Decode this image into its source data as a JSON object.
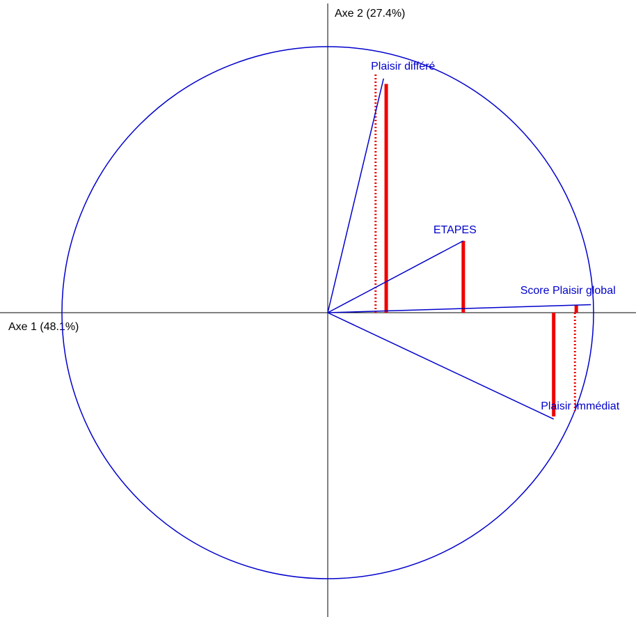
{
  "chart_data": {
    "type": "vector",
    "xlabel": "Axe 1 (48.1%)",
    "ylabel": "Axe 2 (27.4%)",
    "xlim": [
      -1,
      1
    ],
    "ylim": [
      -1,
      1
    ],
    "color": "#0000cc",
    "bar_color": "#ee0000",
    "variables": [
      {
        "name": "Plaisir différé",
        "x": 0.21,
        "y": 0.88
      },
      {
        "name": "ETAPES",
        "x": 0.51,
        "y": 0.27
      },
      {
        "name": "Score Plaisir global",
        "x": 0.99,
        "y": 0.03
      },
      {
        "name": "Plaisir immédiat",
        "x": 0.85,
        "y": -0.4
      }
    ],
    "solid_bars": {
      "x": [
        0.22,
        0.51,
        0.935,
        0.85
      ],
      "y": [
        0.86,
        0.27,
        0.03,
        -0.39
      ]
    },
    "dotted_bars": {
      "x": [
        0.18,
        0.93
      ],
      "y": [
        0.9,
        -0.37
      ]
    }
  }
}
